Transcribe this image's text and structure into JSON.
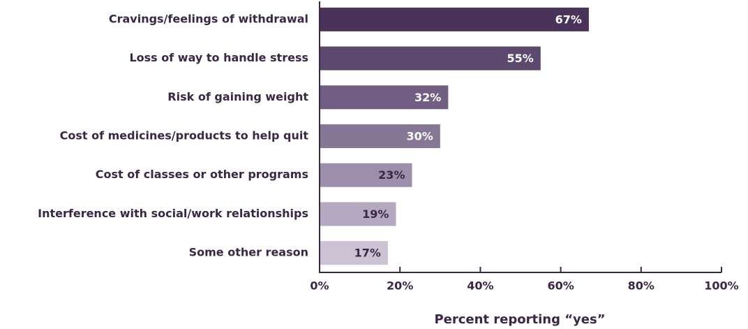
{
  "chart_data": {
    "type": "bar",
    "orientation": "horizontal",
    "categories": [
      "Cravings/feelings of withdrawal",
      "Loss of way to handle stress",
      "Risk of gaining weight",
      "Cost of medicines/products to help quit",
      "Cost of classes or other programs",
      "Interference with social/work relationships",
      "Some other reason"
    ],
    "values": [
      67,
      55,
      32,
      30,
      23,
      19,
      17
    ],
    "value_labels": [
      "67%",
      "55%",
      "32%",
      "30%",
      "23%",
      "19%",
      "17%"
    ],
    "colors": [
      "#4a3358",
      "#5d486e",
      "#725e83",
      "#877797",
      "#9d8eab",
      "#b4a9c0",
      "#cbc3d4"
    ],
    "value_label_colors": [
      "#ffffff",
      "#ffffff",
      "#ffffff",
      "#ffffff",
      "#3a2745",
      "#3a2745",
      "#3a2745"
    ],
    "xlim": [
      0,
      100
    ],
    "xticks": [
      {
        "value": 0,
        "label": "0%"
      },
      {
        "value": 20,
        "label": "20%"
      },
      {
        "value": 40,
        "label": "40%"
      },
      {
        "value": 60,
        "label": "60%"
      },
      {
        "value": 80,
        "label": "80%"
      },
      {
        "value": 100,
        "label": "100%"
      }
    ],
    "xlabel": "Percent reporting “yes”",
    "grid": false
  }
}
